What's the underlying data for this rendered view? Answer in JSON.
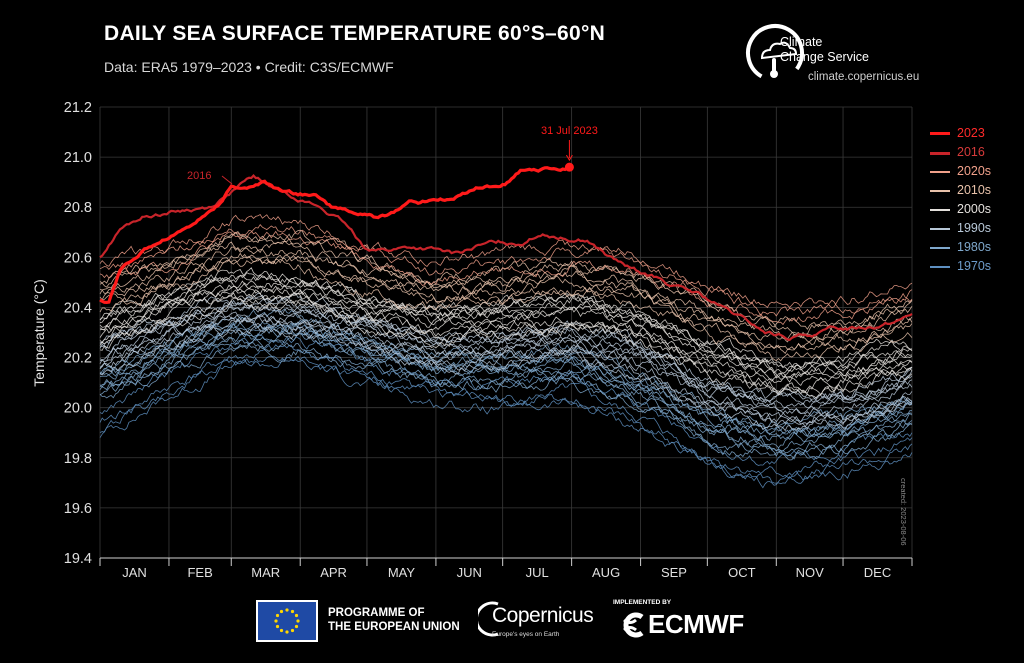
{
  "header": {
    "title": "DAILY SEA SURFACE TEMPERATURE 60°S–60°N",
    "subtitle": "Data: ERA5 1979–2023 • Credit: C3S/ECMWF"
  },
  "brand": {
    "name_line1": "Climate",
    "name_line2": "Change Service",
    "url": "climate.copernicus.eu"
  },
  "footer": {
    "eu_line1": "PROGRAMME OF",
    "eu_line2": "THE EUROPEAN UNION",
    "copernicus": "Copernicus",
    "copernicus_tagline": "Europe's eyes on Earth",
    "implemented_by": "IMPLEMENTED BY",
    "ecmwf": "ECMWF"
  },
  "created_note": "created: 2023-08-06",
  "colors": {
    "background": "#000000",
    "y2023": "#ff1a1a",
    "y2016": "#c8242a",
    "d2020s": "#f0a08a",
    "d2010s": "#e8c2aa",
    "d2000s": "#e4e0dc",
    "d1990s": "#b8c8d8",
    "d1980s": "#7fa8cc",
    "d1970s": "#5e8fc0",
    "grid": "#3a3a3a"
  },
  "chart_data": {
    "type": "line",
    "title": "DAILY SEA SURFACE TEMPERATURE 60°S–60°N",
    "ylabel": "Temperature (°C)",
    "xlabel": "",
    "ylim": [
      19.4,
      21.2
    ],
    "yticks": [
      "19.4",
      "19.6",
      "19.8",
      "20.0",
      "20.2",
      "20.4",
      "20.6",
      "20.8",
      "21.0",
      "21.2"
    ],
    "xlim": [
      1,
      366
    ],
    "months": [
      "JAN",
      "FEB",
      "MAR",
      "APR",
      "MAY",
      "JUN",
      "JUL",
      "AUG",
      "SEP",
      "OCT",
      "NOV",
      "DEC"
    ],
    "grid": true,
    "legend_position": "right",
    "annotations": [
      {
        "text": "31 Jul 2023",
        "x": 212,
        "y": 20.96
      },
      {
        "text": "2016",
        "x": 60,
        "y": 20.88
      }
    ],
    "series": [
      {
        "name": "2023",
        "group": "2023",
        "x": [
          1,
          5,
          10,
          15,
          20,
          25,
          31,
          40,
          50,
          55,
          60,
          65,
          70,
          75,
          80,
          85,
          90,
          95,
          100,
          105,
          110,
          115,
          120,
          125,
          130,
          135,
          140,
          145,
          150,
          155,
          160,
          165,
          170,
          175,
          180,
          185,
          190,
          195,
          200,
          205,
          212
        ],
        "y": [
          20.43,
          20.42,
          20.55,
          20.59,
          20.62,
          20.65,
          20.68,
          20.72,
          20.78,
          20.82,
          20.88,
          20.88,
          20.88,
          20.9,
          20.87,
          20.86,
          20.85,
          20.85,
          20.84,
          20.8,
          20.79,
          20.77,
          20.77,
          20.76,
          20.77,
          20.79,
          20.82,
          20.82,
          20.83,
          20.83,
          20.83,
          20.85,
          20.88,
          20.88,
          20.88,
          20.9,
          20.94,
          20.94,
          20.95,
          20.95,
          20.96
        ]
      },
      {
        "name": "2016",
        "group": "2016",
        "x": [
          1,
          10,
          20,
          31,
          40,
          50,
          60,
          70,
          80,
          90,
          100,
          110,
          120,
          130,
          140,
          150,
          160,
          170,
          180,
          190,
          200,
          210,
          220,
          230,
          240,
          250,
          260,
          270,
          280,
          290,
          300,
          310,
          320,
          330,
          340,
          350,
          360,
          366
        ],
        "y": [
          20.6,
          20.71,
          20.76,
          20.78,
          20.79,
          20.8,
          20.86,
          20.92,
          20.87,
          20.84,
          20.8,
          20.74,
          20.64,
          20.63,
          20.64,
          20.63,
          20.61,
          20.64,
          20.66,
          20.66,
          20.7,
          20.68,
          20.67,
          20.6,
          20.55,
          20.52,
          20.48,
          20.45,
          20.4,
          20.35,
          20.3,
          20.28,
          20.29,
          20.31,
          20.32,
          20.33,
          20.35,
          20.38
        ]
      },
      {
        "name": "2020s",
        "group": "2020s",
        "x": [
          1,
          31,
          60,
          91,
          121,
          152,
          182,
          213,
          244,
          274,
          305,
          335,
          366
        ],
        "y": [
          20.55,
          20.6,
          20.72,
          20.7,
          20.63,
          20.55,
          20.58,
          20.62,
          20.58,
          20.47,
          20.38,
          20.4,
          20.47
        ]
      },
      {
        "name": "2010s",
        "group": "2010s",
        "x": [
          1,
          31,
          60,
          91,
          121,
          152,
          182,
          213,
          244,
          274,
          305,
          335,
          366
        ],
        "y": [
          20.45,
          20.52,
          20.63,
          20.62,
          20.53,
          20.46,
          20.48,
          20.52,
          20.47,
          20.36,
          20.27,
          20.29,
          20.36
        ]
      },
      {
        "name": "2000s",
        "group": "2000s",
        "x": [
          1,
          31,
          60,
          91,
          121,
          152,
          182,
          213,
          244,
          274,
          305,
          335,
          366
        ],
        "y": [
          20.3,
          20.4,
          20.48,
          20.46,
          20.39,
          20.33,
          20.35,
          20.38,
          20.33,
          20.2,
          20.12,
          20.14,
          20.2
        ]
      },
      {
        "name": "1990s",
        "group": "1990s",
        "x": [
          1,
          31,
          60,
          91,
          121,
          152,
          182,
          213,
          244,
          274,
          305,
          335,
          366
        ],
        "y": [
          20.2,
          20.3,
          20.38,
          20.36,
          20.3,
          20.23,
          20.24,
          20.27,
          20.2,
          20.05,
          19.98,
          20.0,
          20.08
        ]
      },
      {
        "name": "1980s",
        "group": "1980s",
        "x": [
          1,
          31,
          60,
          91,
          121,
          152,
          182,
          213,
          244,
          274,
          305,
          335,
          366
        ],
        "y": [
          20.1,
          20.2,
          20.3,
          20.3,
          20.22,
          20.15,
          20.15,
          20.17,
          20.08,
          19.93,
          19.87,
          19.9,
          19.98
        ]
      },
      {
        "name": "1970s",
        "group": "1970s",
        "x": [
          1,
          31,
          60,
          91,
          121,
          152,
          182,
          213,
          244,
          274,
          305,
          335,
          366
        ],
        "y": [
          19.95,
          20.1,
          20.22,
          20.25,
          20.15,
          20.08,
          20.05,
          20.08,
          19.98,
          19.82,
          19.75,
          19.8,
          19.88
        ]
      }
    ]
  }
}
